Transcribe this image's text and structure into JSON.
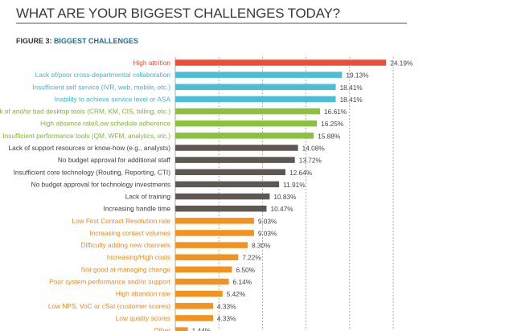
{
  "header": {
    "title": "WHAT ARE YOUR BIGGEST CHALLENGES TODAY?",
    "figure_prefix": "FIGURE 3:",
    "figure_title": "BIGGEST CHALLENGES"
  },
  "chart_data": {
    "type": "bar",
    "orientation": "horizontal",
    "title": "BIGGEST CHALLENGES",
    "xlim": [
      0,
      25
    ],
    "grid": true,
    "grid_step": 5,
    "value_suffix": "%",
    "categories": [
      "High attrition",
      "Lack of/poor cross-departmental collaboration",
      "Insufficient self service (IVR, web, mobile, etc.)",
      "Inability to achieve service level or ASA",
      "Lack of and/or bad desktop tools (CRM, KM, CIS, billing, etc.)",
      "High absence rate/Low schedule adherence",
      "Insufficient performance tools (QM, WFM, analytics, etc.)",
      "Lack of support resources or know-how (e.g., analysts)",
      "No budget approval for additional staff",
      "Insufficient core technology (Routing, Reporting, CTI)",
      "No budget approval for technology investments",
      "Lack of training",
      "Increasing handle time",
      "Low First Contact Resolution rate",
      "Increasing contact volumes",
      "Difficulty adding new channels",
      "Increasing/High costs",
      "Not good at managing change",
      "Poor system performance and/or support",
      "High abandon rate",
      "Low NPS, VoC or cSat (customer scores)",
      "Low quality scores",
      "Other"
    ],
    "values": [
      24.19,
      19.13,
      18.41,
      18.41,
      16.61,
      16.25,
      15.88,
      14.08,
      13.72,
      12.64,
      11.91,
      10.83,
      10.47,
      9.03,
      9.03,
      8.3,
      7.22,
      6.5,
      6.14,
      5.42,
      4.33,
      4.33,
      1.44
    ],
    "value_labels": [
      "24.19%",
      "19.13%",
      "18.41%",
      "18.41%",
      "16.61%",
      "16.25%",
      "15.88%",
      "14.08%",
      "13.72%",
      "12.64%",
      "11.91%",
      "10.83%",
      "10.47%",
      "9.03%",
      "9.03%",
      "8.30%",
      "7.22%",
      "6.50%",
      "6.14%",
      "5.42%",
      "4.33%",
      "4.33%",
      "1.44%"
    ],
    "color_groups": [
      "red",
      "teal",
      "teal",
      "teal",
      "green",
      "green",
      "green",
      "brown",
      "brown",
      "brown",
      "brown",
      "brown",
      "brown",
      "orange",
      "orange",
      "orange",
      "orange",
      "orange",
      "orange",
      "orange",
      "orange",
      "orange",
      "orange"
    ],
    "colors": {
      "red": {
        "bar": "#e8503a",
        "label": "#e8503a"
      },
      "teal": {
        "bar": "#4cbdd4",
        "label": "#3fb4cf"
      },
      "green": {
        "bar": "#8cc13f",
        "label": "#7fb436"
      },
      "brown": {
        "bar": "#5f5752",
        "label": "#3d3d3d"
      },
      "orange": {
        "bar": "#f3931f",
        "label": "#f08a1e"
      }
    },
    "value_label_color": "#444444",
    "grid_color": "#9a9a9a"
  }
}
